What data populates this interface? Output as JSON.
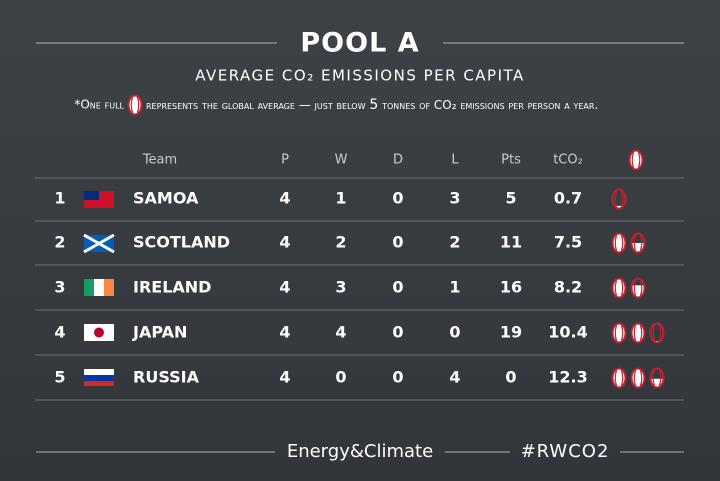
{
  "header": {
    "title": "POOL A",
    "subtitle": "AVERAGE CO₂ EMISSIONS PER CAPITA",
    "note": {
      "before": "*One full",
      "after": "represents the global average — just below",
      "average": 5,
      "end": "tonnes of CO₂ emissions per person a year."
    }
  },
  "table": {
    "columns": [
      "Team",
      "P",
      "W",
      "D",
      "L",
      "Pts",
      "tCO₂"
    ],
    "rows": [
      [
        1,
        "SAMOA",
        4,
        1,
        0,
        3,
        5,
        0.7
      ],
      [
        2,
        "SCOTLAND",
        4,
        2,
        0,
        2,
        11,
        7.5
      ],
      [
        3,
        "IRELAND",
        4,
        3,
        0,
        1,
        16,
        8.2
      ],
      [
        4,
        "JAPAN",
        4,
        4,
        0,
        0,
        19,
        10.4
      ],
      [
        5,
        "RUSSIA",
        4,
        0,
        0,
        4,
        0,
        12.3
      ]
    ]
  },
  "footer": {
    "brand": "Energy&Climate",
    "hashtag": "#RWCO2"
  }
}
